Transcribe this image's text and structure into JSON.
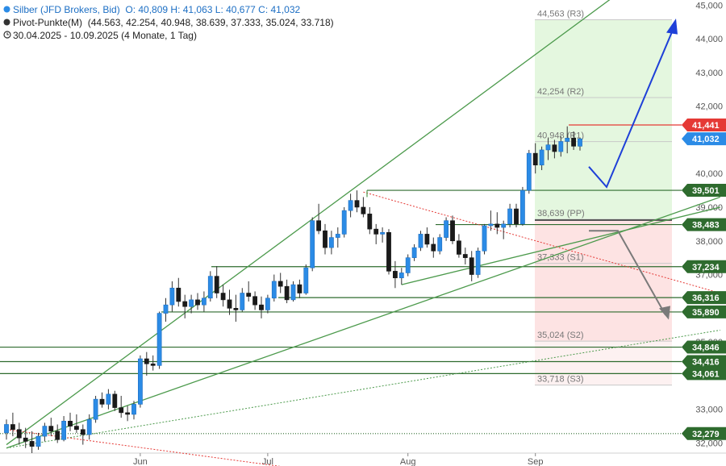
{
  "legend": {
    "line1_name": "Silber (JFD Brokers, Bid)",
    "line1_values": "O: 40,809  H: 41,063  L: 40,677  C: 41,032",
    "line2_name": "Pivot-Punkte(M)",
    "line2_values": "(44.563, 42.254, 40.948, 38.639, 37.333, 35.024, 33.718)",
    "line3": "30.04.2025 - 10.09.2025  (4 Monate, 1 Tag)"
  },
  "chart_data": {
    "type": "candlestick",
    "title": "Silber (JFD Brokers, Bid)",
    "xlabel": "",
    "ylabel": "",
    "ylim": [
      31700,
      45150
    ],
    "y_ticks": [
      32000,
      33000,
      34000,
      35000,
      36000,
      37000,
      38000,
      39000,
      40000,
      41000,
      42000,
      43000,
      44000,
      45000
    ],
    "y_tick_labels": [
      "32,000",
      "33,000",
      "34,000",
      "35,000",
      "36,000",
      "37,000",
      "38,000",
      "39,000",
      "40,000",
      "41,000",
      "42,000",
      "43,000",
      "44,000",
      "45,000"
    ],
    "x_ticks": [
      "Jun",
      "Jul",
      "Aug",
      "Sep"
    ],
    "pivots": [
      {
        "label": "44,563 (R3)",
        "value": 44563
      },
      {
        "label": "42,254 (R2)",
        "value": 42254
      },
      {
        "label": "40,948 (R1)",
        "value": 40948
      },
      {
        "label": "38,639 (PP)",
        "value": 38639
      },
      {
        "label": "37,333 (S1)",
        "value": 37333
      },
      {
        "label": "35,024 (S2)",
        "value": 35024
      },
      {
        "label": "33,718 (S3)",
        "value": 33718
      }
    ],
    "horizontal_levels": [
      {
        "label": "41,441",
        "value": 41441,
        "color": "#e53935"
      },
      {
        "label": "39,501",
        "value": 39501,
        "color": "#2e6b2e"
      },
      {
        "label": "38,483",
        "value": 38483,
        "color": "#2e6b2e"
      },
      {
        "label": "37,234",
        "value": 37234,
        "color": "#2e6b2e"
      },
      {
        "label": "36,316",
        "value": 36316,
        "color": "#2e6b2e"
      },
      {
        "label": "35,890",
        "value": 35890,
        "color": "#2e6b2e"
      },
      {
        "label": "34,846",
        "value": 34846,
        "color": "#2e6b2e"
      },
      {
        "label": "34,416",
        "value": 34416,
        "color": "#2e6b2e"
      },
      {
        "label": "34,061",
        "value": 34061,
        "color": "#2e6b2e"
      },
      {
        "label": "32,279",
        "value": 32279,
        "color": "#2e6b2e"
      }
    ],
    "last_price": {
      "label": "41,032",
      "value": 41032,
      "color": "#2b8be6"
    },
    "candles": [
      [
        32.3,
        32.7,
        32.1,
        32.55
      ],
      [
        32.55,
        32.9,
        32.2,
        32.4
      ],
      [
        32.4,
        32.6,
        31.95,
        32.15
      ],
      [
        32.15,
        32.45,
        31.85,
        32.05
      ],
      [
        32.05,
        32.35,
        31.7,
        31.9
      ],
      [
        31.9,
        32.3,
        31.8,
        32.2
      ],
      [
        32.2,
        32.6,
        32.05,
        32.5
      ],
      [
        32.5,
        32.75,
        32.2,
        32.35
      ],
      [
        32.35,
        32.55,
        32.0,
        32.1
      ],
      [
        32.1,
        32.8,
        32.05,
        32.65
      ],
      [
        32.65,
        32.9,
        32.35,
        32.5
      ],
      [
        32.5,
        32.85,
        32.3,
        32.4
      ],
      [
        32.4,
        32.55,
        31.95,
        32.25
      ],
      [
        32.25,
        32.85,
        32.1,
        32.7
      ],
      [
        32.7,
        33.4,
        32.6,
        33.3
      ],
      [
        33.3,
        33.5,
        33.05,
        33.15
      ],
      [
        33.15,
        33.6,
        33.0,
        33.45
      ],
      [
        33.45,
        33.55,
        32.95,
        33.05
      ],
      [
        33.05,
        33.4,
        32.75,
        32.9
      ],
      [
        32.9,
        33.1,
        32.65,
        32.85
      ],
      [
        32.85,
        33.25,
        32.7,
        33.15
      ],
      [
        33.15,
        34.6,
        33.05,
        34.5
      ],
      [
        34.5,
        34.7,
        34.0,
        34.35
      ],
      [
        34.35,
        34.6,
        34.15,
        34.3
      ],
      [
        34.3,
        35.9,
        34.2,
        35.85
      ],
      [
        35.85,
        36.3,
        35.6,
        36.1
      ],
      [
        36.1,
        36.8,
        35.9,
        36.6
      ],
      [
        36.6,
        36.9,
        36.05,
        36.2
      ],
      [
        36.2,
        36.4,
        35.7,
        36.05
      ],
      [
        36.05,
        36.4,
        35.85,
        36.25
      ],
      [
        36.25,
        36.45,
        35.95,
        36.1
      ],
      [
        36.1,
        36.5,
        35.9,
        36.3
      ],
      [
        36.3,
        37.1,
        36.2,
        36.95
      ],
      [
        36.95,
        37.25,
        36.3,
        36.45
      ],
      [
        36.45,
        36.7,
        36.05,
        36.25
      ],
      [
        36.25,
        36.55,
        35.8,
        36.0
      ],
      [
        36.0,
        36.4,
        35.6,
        35.95
      ],
      [
        35.95,
        36.6,
        35.9,
        36.45
      ],
      [
        36.45,
        36.8,
        36.2,
        36.35
      ],
      [
        36.35,
        36.5,
        35.95,
        36.1
      ],
      [
        36.1,
        36.35,
        35.7,
        35.95
      ],
      [
        35.95,
        36.4,
        35.85,
        36.3
      ],
      [
        36.3,
        37.0,
        36.2,
        36.8
      ],
      [
        36.8,
        37.05,
        36.45,
        36.65
      ],
      [
        36.65,
        36.85,
        36.15,
        36.25
      ],
      [
        36.25,
        36.8,
        36.2,
        36.7
      ],
      [
        36.7,
        36.85,
        36.3,
        36.45
      ],
      [
        36.45,
        37.3,
        36.4,
        37.2
      ],
      [
        37.2,
        38.7,
        37.1,
        38.6
      ],
      [
        38.6,
        39.1,
        38.2,
        38.3
      ],
      [
        38.3,
        38.5,
        37.6,
        37.8
      ],
      [
        37.8,
        38.3,
        37.6,
        38.1
      ],
      [
        38.1,
        38.4,
        37.8,
        38.2
      ],
      [
        38.2,
        39.0,
        38.1,
        38.9
      ],
      [
        38.9,
        39.4,
        38.7,
        39.2
      ],
      [
        39.2,
        39.5,
        38.85,
        39.0
      ],
      [
        39.0,
        39.3,
        38.7,
        38.8
      ],
      [
        38.8,
        39.0,
        38.2,
        38.35
      ],
      [
        38.35,
        38.5,
        37.9,
        38.2
      ],
      [
        38.2,
        38.4,
        37.95,
        38.25
      ],
      [
        38.25,
        38.35,
        37.0,
        37.1
      ],
      [
        37.1,
        37.4,
        36.6,
        36.9
      ],
      [
        36.9,
        37.2,
        36.7,
        37.05
      ],
      [
        37.05,
        37.6,
        36.95,
        37.5
      ],
      [
        37.5,
        37.9,
        37.4,
        37.8
      ],
      [
        37.8,
        38.3,
        37.7,
        38.2
      ],
      [
        38.2,
        38.4,
        37.8,
        37.9
      ],
      [
        37.9,
        38.1,
        37.5,
        37.7
      ],
      [
        37.7,
        38.2,
        37.6,
        38.1
      ],
      [
        38.1,
        38.7,
        38.0,
        38.6
      ],
      [
        38.6,
        38.75,
        37.9,
        38.0
      ],
      [
        38.0,
        38.2,
        37.5,
        37.6
      ],
      [
        37.6,
        37.8,
        37.3,
        37.5
      ],
      [
        37.5,
        37.7,
        36.8,
        37.0
      ],
      [
        37.0,
        37.8,
        36.9,
        37.7
      ],
      [
        37.7,
        38.5,
        37.6,
        38.45
      ],
      [
        38.45,
        38.9,
        38.3,
        38.5
      ],
      [
        38.5,
        38.85,
        38.2,
        38.4
      ],
      [
        38.4,
        38.6,
        38.05,
        38.5
      ],
      [
        38.5,
        39.1,
        38.4,
        38.95
      ],
      [
        38.95,
        39.1,
        38.4,
        38.5
      ],
      [
        38.5,
        39.6,
        38.45,
        39.5
      ],
      [
        39.5,
        40.7,
        39.4,
        40.6
      ],
      [
        40.6,
        40.9,
        40.0,
        40.25
      ],
      [
        40.25,
        40.8,
        40.1,
        40.7
      ],
      [
        40.7,
        41.05,
        40.4,
        40.85
      ],
      [
        40.85,
        41.0,
        40.45,
        40.65
      ],
      [
        40.65,
        41.1,
        40.5,
        40.95
      ],
      [
        40.95,
        41.4,
        40.6,
        41.05
      ],
      [
        41.05,
        41.25,
        40.7,
        40.81
      ],
      [
        40.81,
        41.06,
        40.68,
        41.03
      ]
    ]
  }
}
